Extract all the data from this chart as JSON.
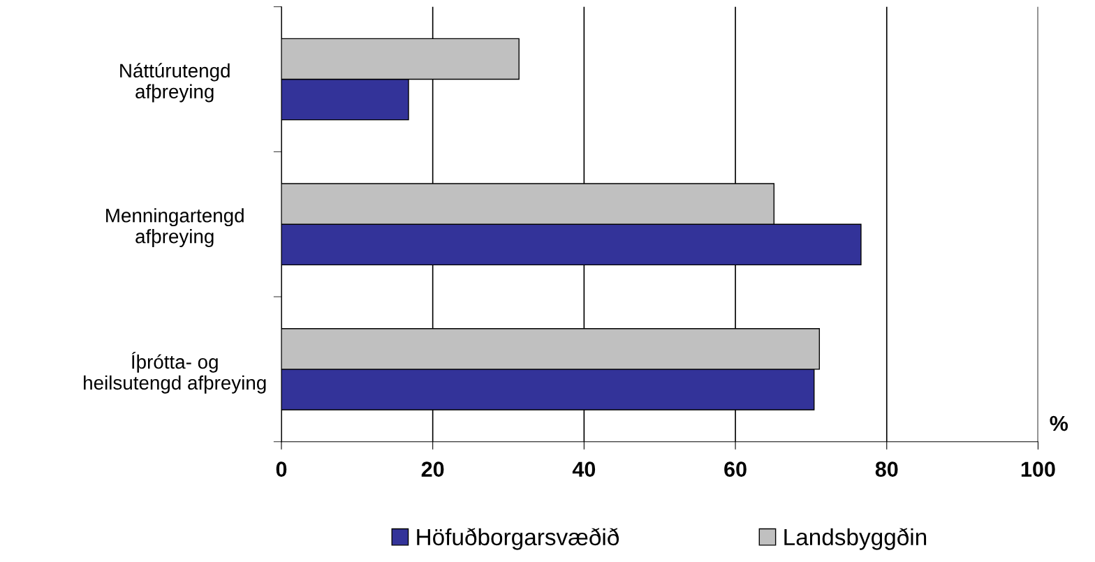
{
  "chart_data": {
    "type": "bar",
    "orientation": "horizontal",
    "categories": [
      "Náttúrutengd\nafþreying",
      "Menningartengd\nafþreying",
      "Íþrótta- og\nheilsutengd afþreying"
    ],
    "series": [
      {
        "name": "Höfuðborgarsvæðið",
        "color": "#333399",
        "values": [
          16.8,
          76.6,
          70.4
        ]
      },
      {
        "name": "Landsbyggðin",
        "color": "#c0c0c0",
        "values": [
          31.4,
          65.1,
          71.1
        ]
      }
    ],
    "xlabel": "%",
    "xlim": [
      0,
      100
    ],
    "xticks": [
      0,
      20,
      40,
      60,
      80,
      100
    ],
    "grid": "x",
    "legend": "bottom"
  }
}
